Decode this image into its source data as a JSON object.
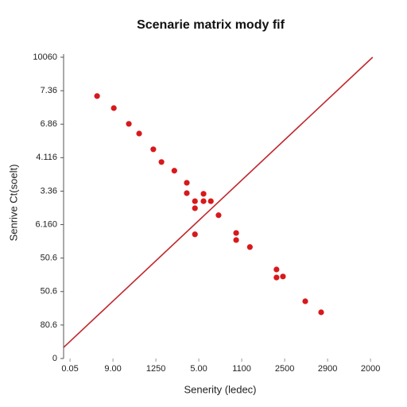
{
  "chart_data": {
    "type": "scatter",
    "title": "Scenarie matrix mody fif",
    "x_label": "Senerity (ledec)",
    "y_label": "Senrive Ct(soelt)",
    "xlim": [
      -0.15,
      7.05
    ],
    "ylim": [
      0,
      9
    ],
    "xticks": [
      {
        "value": 0,
        "label": "0.05"
      },
      {
        "value": 1,
        "label": "9.00"
      },
      {
        "value": 2,
        "label": "1250"
      },
      {
        "value": 3,
        "label": "5.00"
      },
      {
        "value": 4,
        "label": "1100"
      },
      {
        "value": 5,
        "label": "2500"
      },
      {
        "value": 6,
        "label": "2900"
      },
      {
        "value": 7,
        "label": "2000"
      }
    ],
    "yticks": [
      {
        "value": 0,
        "label": "0"
      },
      {
        "value": 1,
        "label": "80.6"
      },
      {
        "value": 2,
        "label": "50.6"
      },
      {
        "value": 3,
        "label": "50.6"
      },
      {
        "value": 4,
        "label": "6.160"
      },
      {
        "value": 5,
        "label": "3.36"
      },
      {
        "value": 6,
        "label": "4.116"
      },
      {
        "value": 7,
        "label": "6.86"
      },
      {
        "value": 8,
        "label": "7.36"
      },
      {
        "value": 9,
        "label": "10060"
      }
    ],
    "points": {
      "color": "#d7191c",
      "x": [
        0.63,
        1.02,
        1.37,
        1.61,
        1.94,
        2.13,
        2.43,
        2.72,
        2.72,
        2.91,
        3.11,
        3.11,
        3.28,
        2.91,
        3.46,
        2.91,
        3.87,
        3.87,
        4.19,
        4.81,
        4.81,
        4.96,
        5.48,
        5.85
      ],
      "y": [
        7.84,
        7.48,
        7.01,
        6.72,
        6.25,
        5.87,
        5.61,
        5.25,
        4.94,
        4.7,
        4.92,
        4.7,
        4.7,
        4.49,
        4.28,
        3.71,
        3.75,
        3.54,
        3.33,
        2.66,
        2.42,
        2.45,
        1.71,
        1.38
      ]
    },
    "line": {
      "color": "#c0282d",
      "x": [
        -0.15,
        7.05
      ],
      "y": [
        0.33,
        9
      ]
    }
  }
}
